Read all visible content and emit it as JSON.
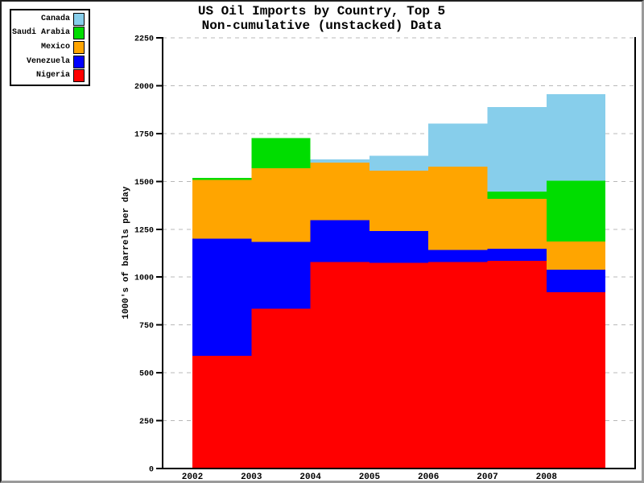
{
  "window": {
    "background": "#ffffff",
    "frame_border_dark": "#1f1f1f",
    "frame_border_gray": "#9a9a9a"
  },
  "header": {
    "title": "US Oil Imports by Country, Top 5",
    "subtitle": "Non-cumulative (unstacked) Data"
  },
  "legend": {
    "position": "top-left",
    "items": [
      "Canada",
      "Saudi Arabia",
      "Mexico",
      "Venezuela",
      "Nigeria"
    ]
  },
  "chart_data": {
    "type": "area",
    "variant": "non-cumulative overlapping step areas (unstacked), later series drawn in front",
    "title": "US Oil Imports by Country, Top 5",
    "subtitle": "Non-cumulative (unstacked) Data",
    "xlabel": "",
    "ylabel": "1000's of barrels per day",
    "categories": [
      "2002",
      "2003",
      "2004",
      "2005",
      "2006",
      "2007",
      "2008"
    ],
    "series": [
      {
        "name": "Canada",
        "color": "#87CEEB",
        "values": [
          1445,
          1549,
          1616,
          1633,
          1802,
          1888,
          1956
        ]
      },
      {
        "name": "Saudi Arabia",
        "color": "#00DD00",
        "values": [
          1519,
          1726,
          1495,
          1537,
          1463,
          1447,
          1503
        ]
      },
      {
        "name": "Mexico",
        "color": "#FFA500",
        "values": [
          1507,
          1569,
          1598,
          1556,
          1577,
          1409,
          1187
        ]
      },
      {
        "name": "Venezuela",
        "color": "#0000FF",
        "values": [
          1201,
          1183,
          1297,
          1241,
          1142,
          1148,
          1039
        ]
      },
      {
        "name": "Nigeria",
        "color": "#FF0000",
        "values": [
          589,
          835,
          1078,
          1075,
          1078,
          1084,
          922
        ]
      }
    ],
    "ylim": [
      0,
      2250
    ],
    "ytick_step": 250,
    "y_ticks": [
      0,
      250,
      500,
      750,
      1000,
      1250,
      1500,
      1750,
      2000,
      2250
    ],
    "grid": "dashed horizontal gridlines behind areas",
    "grid_color": "#b8b8b8",
    "axis_color": "#000000",
    "legend_position": "top-left"
  }
}
